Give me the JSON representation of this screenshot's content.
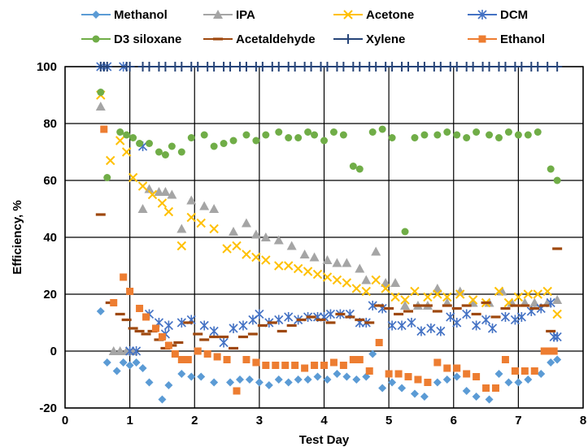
{
  "chart_data": {
    "type": "scatter",
    "title": "",
    "xlabel": "Test Day",
    "ylabel": "Efficiency, %",
    "xlim": [
      0,
      8
    ],
    "ylim": [
      -20,
      100
    ],
    "xticks": [
      0,
      1,
      2,
      3,
      4,
      5,
      6,
      7,
      8
    ],
    "yticks": [
      -20,
      0,
      20,
      40,
      60,
      80,
      100
    ],
    "grid": true,
    "legend": "top",
    "series": [
      {
        "name": "Methanol",
        "color": "#5b9bd5",
        "marker": "diamond",
        "x": [
          0.55,
          0.65,
          0.8,
          0.9,
          1.0,
          1.1,
          1.2,
          1.3,
          1.5,
          1.6,
          1.8,
          1.95,
          2.1,
          2.3,
          2.55,
          2.7,
          2.85,
          3.0,
          3.15,
          3.3,
          3.45,
          3.6,
          3.75,
          3.9,
          4.05,
          4.2,
          4.35,
          4.5,
          4.65,
          4.75,
          4.9,
          5.05,
          5.2,
          5.4,
          5.55,
          5.75,
          5.9,
          6.05,
          6.2,
          6.35,
          6.55,
          6.7,
          6.85,
          7.0,
          7.15,
          7.35,
          7.5,
          7.6
        ],
        "y": [
          14,
          -4,
          -7,
          -4,
          -5,
          -4,
          -6,
          -11,
          -17,
          -12,
          -8,
          -9,
          -9,
          -11,
          -11,
          -10,
          -10,
          -11,
          -12,
          -10,
          -11,
          -10,
          -10,
          -9,
          -10,
          -8,
          -9,
          -10,
          -9,
          -1,
          -13,
          -11,
          -13,
          -15,
          -16,
          -11,
          -10,
          -9,
          -14,
          -16,
          -17,
          -8,
          -11,
          -11,
          -10,
          -8,
          -4,
          -3
        ]
      },
      {
        "name": "IPA",
        "color": "#a5a5a5",
        "marker": "triangle",
        "x": [
          0.55,
          0.75,
          0.85,
          0.95,
          1.05,
          1.2,
          1.3,
          1.45,
          1.55,
          1.65,
          1.8,
          1.95,
          2.15,
          2.3,
          2.6,
          2.8,
          2.95,
          3.1,
          3.3,
          3.5,
          3.7,
          3.85,
          4.05,
          4.2,
          4.35,
          4.55,
          4.65,
          4.8,
          4.95,
          5.1,
          5.25,
          5.45,
          5.6,
          5.75,
          5.9,
          6.1,
          6.3,
          6.55,
          6.75,
          6.9,
          7.1,
          7.25,
          7.45,
          7.6
        ],
        "y": [
          86,
          0,
          0,
          0,
          0,
          50,
          57,
          56,
          56,
          55,
          43,
          53,
          51,
          50,
          42,
          45,
          41,
          40,
          39,
          37,
          34,
          33,
          32,
          31,
          31,
          29,
          25,
          35,
          24,
          24,
          16,
          16,
          16,
          22,
          17,
          21,
          17,
          17,
          21,
          17,
          17,
          17,
          17,
          18
        ]
      },
      {
        "name": "Acetone",
        "color": "#ffc000",
        "marker": "x",
        "x": [
          0.55,
          0.7,
          0.85,
          0.95,
          1.05,
          1.2,
          1.35,
          1.5,
          1.6,
          1.8,
          1.95,
          2.1,
          2.3,
          2.5,
          2.65,
          2.8,
          2.95,
          3.1,
          3.3,
          3.45,
          3.6,
          3.75,
          3.9,
          4.05,
          4.2,
          4.35,
          4.5,
          4.65,
          4.8,
          4.95,
          5.1,
          5.25,
          5.4,
          5.6,
          5.75,
          5.9,
          6.1,
          6.3,
          6.5,
          6.7,
          6.85,
          7.0,
          7.15,
          7.3,
          7.45,
          7.6
        ],
        "y": [
          90,
          67,
          74,
          70,
          61,
          58,
          55,
          52,
          49,
          37,
          47,
          45,
          43,
          36,
          37,
          34,
          33,
          32,
          30,
          30,
          29,
          28,
          27,
          26,
          25,
          24,
          22,
          21,
          25,
          22,
          19,
          18,
          21,
          19,
          20,
          19,
          20,
          18,
          17,
          21,
          17,
          19,
          20,
          20,
          21,
          13
        ]
      },
      {
        "name": "DCM",
        "color": "#4472c4",
        "marker": "asterisk",
        "x": [
          0.55,
          0.65,
          0.9,
          1.0,
          1.1,
          1.2,
          1.3,
          1.45,
          1.55,
          1.6,
          1.8,
          1.95,
          2.15,
          2.3,
          2.45,
          2.6,
          2.75,
          2.9,
          3.0,
          3.15,
          3.3,
          3.45,
          3.6,
          3.75,
          3.9,
          4.0,
          4.1,
          4.25,
          4.4,
          4.55,
          4.65,
          4.75,
          4.9,
          5.05,
          5.2,
          5.35,
          5.5,
          5.65,
          5.8,
          5.95,
          6.05,
          6.2,
          6.35,
          6.5,
          6.6,
          6.8,
          6.95,
          7.05,
          7.2,
          7.35,
          7.5,
          7.55,
          7.6
        ],
        "y": [
          100,
          100,
          100,
          0,
          0,
          72,
          13,
          10,
          6,
          9,
          10,
          11,
          9,
          7,
          3,
          8,
          9,
          11,
          13,
          10,
          11,
          12,
          11,
          12,
          12,
          12,
          13,
          13,
          13,
          10,
          10,
          16,
          15,
          9,
          9,
          10,
          7,
          8,
          7,
          12,
          10,
          13,
          9,
          11,
          8,
          12,
          11,
          12,
          14,
          15,
          17,
          5,
          5
        ]
      },
      {
        "name": "D3 siloxane",
        "color": "#70ad47",
        "marker": "circle",
        "x": [
          0.55,
          0.65,
          0.85,
          0.95,
          1.05,
          1.15,
          1.3,
          1.45,
          1.55,
          1.65,
          1.8,
          1.95,
          2.15,
          2.3,
          2.45,
          2.6,
          2.8,
          2.95,
          3.1,
          3.3,
          3.45,
          3.6,
          3.75,
          3.85,
          4.0,
          4.15,
          4.3,
          4.45,
          4.55,
          4.75,
          4.9,
          5.05,
          5.25,
          5.4,
          5.55,
          5.75,
          5.9,
          6.05,
          6.2,
          6.35,
          6.55,
          6.7,
          6.85,
          7.0,
          7.15,
          7.3,
          7.5,
          7.6
        ],
        "y": [
          91,
          61,
          77,
          76,
          75,
          73,
          73,
          70,
          69,
          72,
          70,
          75,
          76,
          72,
          73,
          74,
          76,
          74,
          76,
          77,
          75,
          75,
          77,
          76,
          74,
          77,
          76,
          65,
          64,
          77,
          78,
          75,
          42,
          75,
          76,
          76,
          77,
          76,
          75,
          77,
          76,
          75,
          77,
          76,
          76,
          77,
          64,
          60
        ]
      },
      {
        "name": "Acetaldehyde",
        "color": "#9e480e",
        "marker": "dash",
        "x": [
          0.55,
          0.7,
          0.85,
          0.95,
          1.05,
          1.15,
          1.25,
          1.35,
          1.45,
          1.55,
          1.65,
          1.75,
          1.9,
          2.05,
          2.15,
          2.3,
          2.45,
          2.6,
          2.75,
          2.9,
          3.05,
          3.2,
          3.35,
          3.5,
          3.65,
          3.8,
          3.95,
          4.1,
          4.25,
          4.4,
          4.55,
          4.7,
          4.85,
          5.0,
          5.15,
          5.3,
          5.45,
          5.6,
          5.75,
          5.9,
          6.05,
          6.2,
          6.35,
          6.5,
          6.65,
          6.8,
          6.95,
          7.1,
          7.25,
          7.4,
          7.5,
          7.6
        ],
        "y": [
          48,
          17,
          13,
          11,
          8,
          7,
          6,
          7,
          4,
          1,
          2,
          3,
          10,
          6,
          4,
          5,
          5,
          1,
          5,
          6,
          9,
          10,
          7,
          9,
          11,
          12,
          11,
          10,
          13,
          12,
          11,
          10,
          16,
          15,
          13,
          14,
          16,
          16,
          14,
          16,
          15,
          16,
          13,
          17,
          12,
          15,
          16,
          16,
          15,
          16,
          7,
          36
        ]
      },
      {
        "name": "Xylene",
        "color": "#264478",
        "marker": "plus",
        "x": [
          0.55,
          0.6,
          0.65,
          0.95,
          1.0,
          1.2,
          1.3,
          1.45,
          1.55,
          1.7,
          1.8,
          1.95,
          2.05,
          2.2,
          2.3,
          2.45,
          2.55,
          2.7,
          2.8,
          2.95,
          3.05,
          3.2,
          3.3,
          3.45,
          3.55,
          3.7,
          3.8,
          3.95,
          4.05,
          4.2,
          4.3,
          4.45,
          4.55,
          4.7,
          4.8,
          4.95,
          5.05,
          5.2,
          5.3,
          5.45,
          5.55,
          5.7,
          5.8,
          5.95,
          6.05,
          6.2,
          6.3,
          6.45,
          6.55,
          6.7,
          6.8,
          6.95,
          7.05,
          7.2,
          7.3,
          7.45,
          7.6
        ],
        "y": [
          100,
          100,
          100,
          100,
          100,
          100,
          100,
          100,
          100,
          100,
          100,
          100,
          100,
          100,
          100,
          100,
          100,
          100,
          100,
          100,
          100,
          100,
          100,
          100,
          100,
          100,
          100,
          100,
          100,
          100,
          100,
          100,
          100,
          100,
          100,
          100,
          100,
          100,
          100,
          100,
          100,
          100,
          100,
          100,
          100,
          100,
          100,
          100,
          100,
          100,
          100,
          100,
          100,
          100,
          100,
          100,
          100
        ]
      },
      {
        "name": "Ethanol",
        "color": "#ed7d31",
        "marker": "square",
        "x": [
          0.6,
          0.75,
          0.9,
          1.0,
          1.15,
          1.25,
          1.4,
          1.5,
          1.6,
          1.7,
          1.8,
          1.9,
          2.05,
          2.2,
          2.35,
          2.5,
          2.65,
          2.8,
          2.95,
          3.1,
          3.25,
          3.4,
          3.55,
          3.7,
          3.85,
          4.0,
          4.15,
          4.3,
          4.45,
          4.55,
          4.7,
          4.85,
          5.0,
          5.15,
          5.3,
          5.45,
          5.6,
          5.75,
          5.9,
          6.05,
          6.2,
          6.35,
          6.5,
          6.65,
          6.8,
          6.95,
          7.1,
          7.25,
          7.4,
          7.5,
          7.55
        ],
        "y": [
          78,
          17,
          26,
          21,
          15,
          12,
          8,
          5,
          2,
          -1,
          -3,
          -3,
          0,
          -1,
          -2,
          -3,
          -14,
          -3,
          -4,
          -5,
          -5,
          -5,
          -5,
          -6,
          -5,
          -5,
          -4,
          -5,
          -3,
          -3,
          -7,
          3,
          -8,
          -8,
          -9,
          -10,
          -11,
          -4,
          -6,
          -6,
          -8,
          -9,
          -13,
          -13,
          -3,
          -7,
          -7,
          -7,
          0,
          0,
          0
        ]
      }
    ]
  }
}
